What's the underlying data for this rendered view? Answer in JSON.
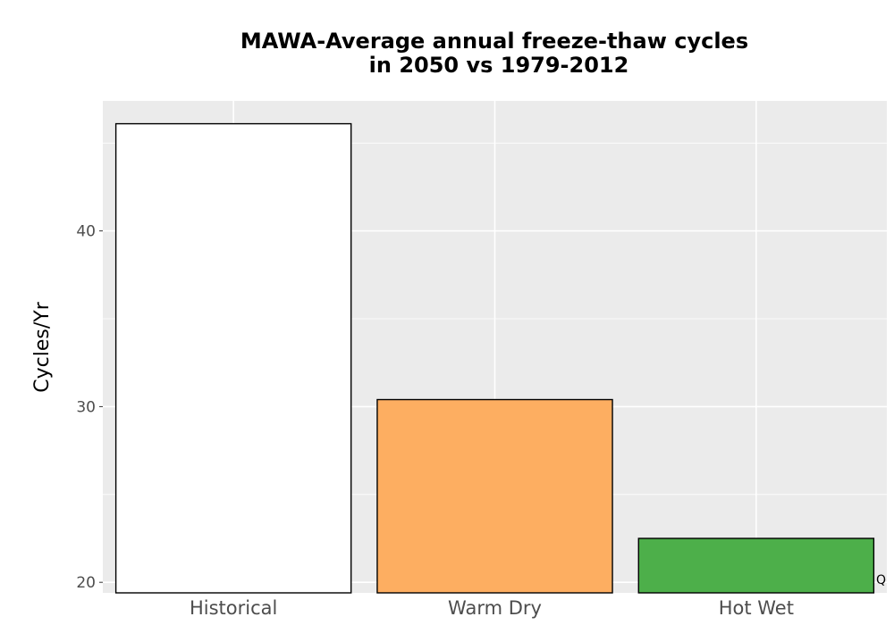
{
  "chart_data": {
    "type": "bar",
    "title_line1": "MAWA-Average annual freeze-thaw cycles",
    "title_line2": "in 2050 vs 1979-2012",
    "ylabel": "Cycles/Yr",
    "xlabel": "",
    "categories": [
      "Historical",
      "Warm Dry",
      "Hot Wet"
    ],
    "values": [
      46.1,
      30.4,
      22.5
    ],
    "colors": [
      "#ffffff",
      "#fdae61",
      "#4daf4a"
    ],
    "outline_color": "#000000",
    "ylim": [
      19.4,
      47.4
    ],
    "yticks": [
      20,
      30,
      40
    ],
    "ytick_labels": [
      "20",
      "30",
      "40"
    ],
    "grid": true,
    "panel_background": "#ebebeb",
    "corner_note": "Q"
  }
}
